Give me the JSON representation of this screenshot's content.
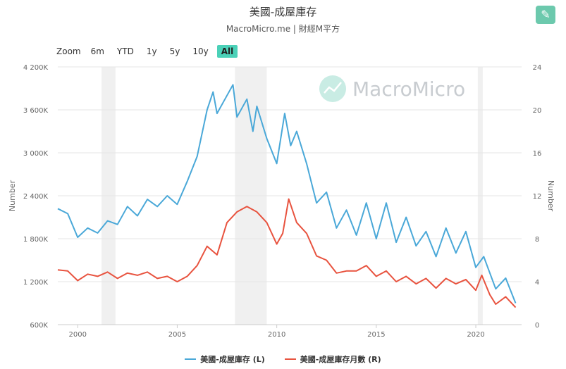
{
  "header": {
    "title": "美國-成屋庫存",
    "subtitle": "MacroMicro.me | 財經M平方",
    "edit_icon": "pencil-icon"
  },
  "range_selector": {
    "label": "Zoom",
    "buttons": [
      "6m",
      "YTD",
      "1y",
      "5y",
      "10y",
      "All"
    ],
    "active": "All"
  },
  "watermark": {
    "text": "MacroMicro",
    "icon": "chart-logo-icon"
  },
  "colors": {
    "left_series": "#4aa8d8",
    "right_series": "#e8533f",
    "recession_band": "#f0f0f0",
    "accent": "#4bd1b8"
  },
  "chart_data": {
    "type": "line",
    "title": "美國-成屋庫存",
    "subtitle": "MacroMicro.me | 財經M平方",
    "x_ticks": [
      "2000",
      "2005",
      "2010",
      "2015",
      "2020"
    ],
    "x_range": [
      1999.0,
      2022.3
    ],
    "left_axis": {
      "label": "Number",
      "range": [
        600,
        4200
      ],
      "ticks": [
        "600K",
        "1 200K",
        "1 800K",
        "2 400K",
        "3 000K",
        "3 600K",
        "4 200K"
      ]
    },
    "right_axis": {
      "label": "Number",
      "range": [
        0,
        24
      ],
      "ticks": [
        "0",
        "4",
        "8",
        "12",
        "16",
        "20",
        "24"
      ]
    },
    "recession_bands": [
      [
        2001.2,
        2001.9
      ],
      [
        2007.9,
        2009.5
      ],
      [
        2020.1,
        2020.35
      ]
    ],
    "legend_position": "bottom-center",
    "series": [
      {
        "name": "美國-成屋庫存 (L)",
        "axis": "left",
        "points": [
          [
            1999.0,
            2220
          ],
          [
            1999.5,
            2150
          ],
          [
            2000.0,
            1820
          ],
          [
            2000.5,
            1950
          ],
          [
            2001.0,
            1880
          ],
          [
            2001.5,
            2050
          ],
          [
            2002.0,
            2000
          ],
          [
            2002.5,
            2250
          ],
          [
            2003.0,
            2120
          ],
          [
            2003.5,
            2350
          ],
          [
            2004.0,
            2250
          ],
          [
            2004.5,
            2400
          ],
          [
            2005.0,
            2280
          ],
          [
            2005.5,
            2600
          ],
          [
            2006.0,
            2950
          ],
          [
            2006.5,
            3600
          ],
          [
            2006.8,
            3850
          ],
          [
            2007.0,
            3550
          ],
          [
            2007.5,
            3800
          ],
          [
            2007.8,
            3950
          ],
          [
            2008.0,
            3500
          ],
          [
            2008.5,
            3750
          ],
          [
            2008.8,
            3300
          ],
          [
            2009.0,
            3650
          ],
          [
            2009.5,
            3200
          ],
          [
            2010.0,
            2850
          ],
          [
            2010.4,
            3550
          ],
          [
            2010.7,
            3100
          ],
          [
            2011.0,
            3300
          ],
          [
            2011.5,
            2850
          ],
          [
            2012.0,
            2300
          ],
          [
            2012.5,
            2450
          ],
          [
            2013.0,
            1950
          ],
          [
            2013.5,
            2200
          ],
          [
            2014.0,
            1850
          ],
          [
            2014.5,
            2300
          ],
          [
            2015.0,
            1800
          ],
          [
            2015.5,
            2300
          ],
          [
            2016.0,
            1750
          ],
          [
            2016.5,
            2100
          ],
          [
            2017.0,
            1700
          ],
          [
            2017.5,
            1900
          ],
          [
            2018.0,
            1550
          ],
          [
            2018.5,
            1950
          ],
          [
            2019.0,
            1600
          ],
          [
            2019.5,
            1900
          ],
          [
            2020.0,
            1400
          ],
          [
            2020.4,
            1550
          ],
          [
            2021.0,
            1100
          ],
          [
            2021.5,
            1250
          ],
          [
            2022.0,
            900
          ]
        ]
      },
      {
        "name": "美國-成屋庫存月數 (R)",
        "axis": "right",
        "points": [
          [
            1999.0,
            5.1
          ],
          [
            1999.5,
            5.0
          ],
          [
            2000.0,
            4.1
          ],
          [
            2000.5,
            4.7
          ],
          [
            2001.0,
            4.5
          ],
          [
            2001.5,
            4.9
          ],
          [
            2002.0,
            4.3
          ],
          [
            2002.5,
            4.8
          ],
          [
            2003.0,
            4.6
          ],
          [
            2003.5,
            4.9
          ],
          [
            2004.0,
            4.3
          ],
          [
            2004.5,
            4.5
          ],
          [
            2005.0,
            4.0
          ],
          [
            2005.5,
            4.5
          ],
          [
            2006.0,
            5.5
          ],
          [
            2006.5,
            7.3
          ],
          [
            2007.0,
            6.5
          ],
          [
            2007.5,
            9.5
          ],
          [
            2008.0,
            10.5
          ],
          [
            2008.5,
            11.0
          ],
          [
            2009.0,
            10.5
          ],
          [
            2009.5,
            9.5
          ],
          [
            2010.0,
            7.5
          ],
          [
            2010.3,
            8.5
          ],
          [
            2010.6,
            11.7
          ],
          [
            2011.0,
            9.5
          ],
          [
            2011.5,
            8.5
          ],
          [
            2012.0,
            6.4
          ],
          [
            2012.5,
            6.0
          ],
          [
            2013.0,
            4.8
          ],
          [
            2013.5,
            5.0
          ],
          [
            2014.0,
            5.0
          ],
          [
            2014.5,
            5.5
          ],
          [
            2015.0,
            4.5
          ],
          [
            2015.5,
            5.0
          ],
          [
            2016.0,
            4.0
          ],
          [
            2016.5,
            4.5
          ],
          [
            2017.0,
            3.8
          ],
          [
            2017.5,
            4.3
          ],
          [
            2018.0,
            3.4
          ],
          [
            2018.5,
            4.3
          ],
          [
            2019.0,
            3.8
          ],
          [
            2019.5,
            4.2
          ],
          [
            2020.0,
            3.2
          ],
          [
            2020.3,
            4.6
          ],
          [
            2020.7,
            2.8
          ],
          [
            2021.0,
            1.9
          ],
          [
            2021.5,
            2.6
          ],
          [
            2022.0,
            1.6
          ]
        ]
      }
    ]
  }
}
